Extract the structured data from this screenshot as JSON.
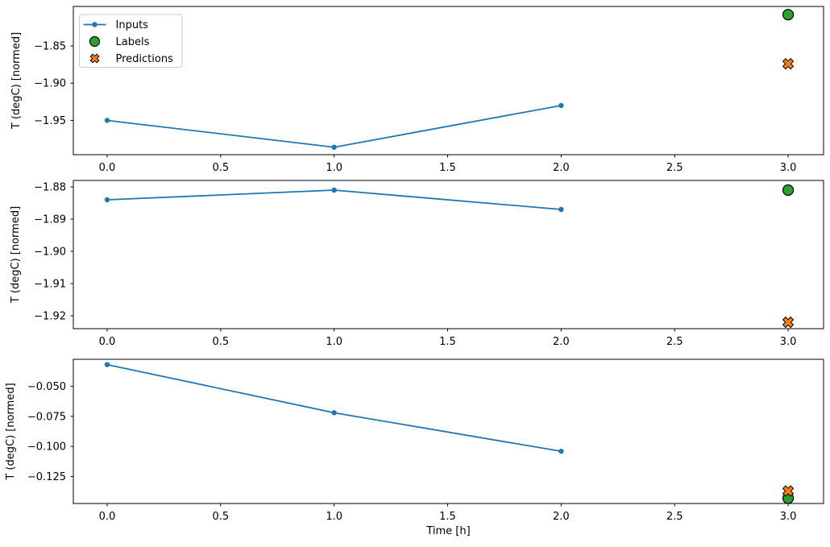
{
  "figure": {
    "background": "#ffffff"
  },
  "colors": {
    "inputs": "#1f77b4",
    "labels": "#2ca02c",
    "predictions": "#ff7f0e",
    "marker_edge": "#000000",
    "axis": "#000000",
    "legend_border": "#cccccc",
    "legend_bg": "#ffffff"
  },
  "legend": {
    "position": "upper left",
    "items": [
      {
        "label": "Inputs",
        "marker": "line-dot",
        "color": "#1f77b4"
      },
      {
        "label": "Labels",
        "marker": "circle",
        "color": "#2ca02c"
      },
      {
        "label": "Predictions",
        "marker": "X",
        "color": "#ff7f0e"
      }
    ]
  },
  "chart_data": [
    {
      "type": "line",
      "title": "",
      "xlabel": "",
      "ylabel": "T (degC) [normed]",
      "xlim": [
        -0.149,
        3.156
      ],
      "ylim": [
        -1.996,
        -1.797
      ],
      "grid": false,
      "x_ticks": {
        "values": [
          0.0,
          0.5,
          1.0,
          1.5,
          2.0,
          2.5,
          3.0
        ],
        "labels": [
          "0.0",
          "0.5",
          "1.0",
          "1.5",
          "2.0",
          "2.5",
          "3.0"
        ]
      },
      "y_ticks": {
        "values": [
          -1.85,
          -1.9,
          -1.95
        ],
        "labels": [
          "−1.85",
          "−1.90",
          "−1.95"
        ]
      },
      "series": [
        {
          "name": "Inputs",
          "type": "line",
          "marker": "dot",
          "x": [
            0,
            1,
            2
          ],
          "y": [
            -1.95,
            -1.986,
            -1.93
          ]
        },
        {
          "name": "Labels",
          "type": "scatter",
          "marker": "circle",
          "x": [
            3
          ],
          "y": [
            -1.808
          ]
        },
        {
          "name": "Predictions",
          "type": "scatter",
          "marker": "X",
          "x": [
            3
          ],
          "y": [
            -1.874
          ]
        }
      ]
    },
    {
      "type": "line",
      "title": "",
      "xlabel": "",
      "ylabel": "T (degC) [normed]",
      "xlim": [
        -0.149,
        3.156
      ],
      "ylim": [
        -1.924,
        -1.878
      ],
      "grid": false,
      "x_ticks": {
        "values": [
          0.0,
          0.5,
          1.0,
          1.5,
          2.0,
          2.5,
          3.0
        ],
        "labels": [
          "0.0",
          "0.5",
          "1.0",
          "1.5",
          "2.0",
          "2.5",
          "3.0"
        ]
      },
      "y_ticks": {
        "values": [
          -1.88,
          -1.89,
          -1.9,
          -1.91,
          -1.92
        ],
        "labels": [
          "−1.88",
          "−1.89",
          "−1.90",
          "−1.91",
          "−1.92"
        ]
      },
      "series": [
        {
          "name": "Inputs",
          "type": "line",
          "marker": "dot",
          "x": [
            0,
            1,
            2
          ],
          "y": [
            -1.884,
            -1.881,
            -1.887
          ]
        },
        {
          "name": "Labels",
          "type": "scatter",
          "marker": "circle",
          "x": [
            3
          ],
          "y": [
            -1.881
          ]
        },
        {
          "name": "Predictions",
          "type": "scatter",
          "marker": "X",
          "x": [
            3
          ],
          "y": [
            -1.922
          ]
        }
      ]
    },
    {
      "type": "line",
      "title": "",
      "xlabel": "Time [h]",
      "ylabel": "T (degC) [normed]",
      "xlim": [
        -0.149,
        3.156
      ],
      "ylim": [
        -0.1474,
        -0.0276
      ],
      "grid": false,
      "x_ticks": {
        "values": [
          0.0,
          0.5,
          1.0,
          1.5,
          2.0,
          2.5,
          3.0
        ],
        "labels": [
          "0.0",
          "0.5",
          "1.0",
          "1.5",
          "2.0",
          "2.5",
          "3.0"
        ]
      },
      "y_ticks": {
        "values": [
          -0.05,
          -0.075,
          -0.1,
          -0.125
        ],
        "labels": [
          "−0.050",
          "−0.075",
          "−0.100",
          "−0.125"
        ]
      },
      "series": [
        {
          "name": "Inputs",
          "type": "line",
          "marker": "dot",
          "x": [
            0,
            1,
            2
          ],
          "y": [
            -0.032,
            -0.072,
            -0.104
          ]
        },
        {
          "name": "Labels",
          "type": "scatter",
          "marker": "circle",
          "x": [
            3
          ],
          "y": [
            -0.143
          ]
        },
        {
          "name": "Predictions",
          "type": "scatter",
          "marker": "X",
          "x": [
            3
          ],
          "y": [
            -0.137
          ]
        }
      ]
    }
  ]
}
